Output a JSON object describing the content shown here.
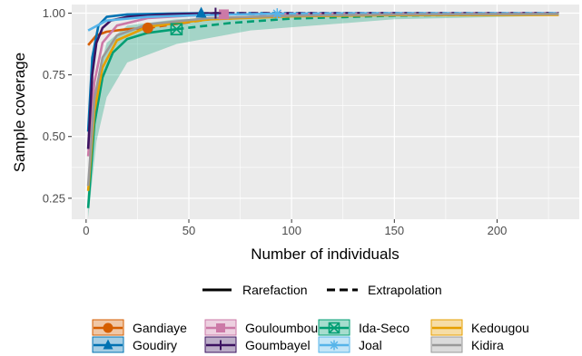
{
  "chart_data": {
    "type": "line",
    "xlabel": "Number of individuals",
    "ylabel": "Sample coverage",
    "xlim": [
      -7,
      240
    ],
    "ylim": [
      0.165,
      1.035
    ],
    "x_ticks": [
      0,
      50,
      100,
      150,
      200
    ],
    "x_tick_labels": [
      "0",
      "50",
      "100",
      "150",
      "200"
    ],
    "y_ticks": [
      0.25,
      0.5,
      0.75,
      1.0
    ],
    "y_tick_labels": [
      "0.25",
      "0.50",
      "0.75",
      "1.00"
    ],
    "grid": true,
    "background": "#ebebeb",
    "legend_linetype": {
      "position": "bottom",
      "items": [
        {
          "label": "Rarefaction",
          "dash": "solid"
        },
        {
          "label": "Extrapolation",
          "dash": "dashed"
        }
      ]
    },
    "legend_placement": "bottom",
    "series": [
      {
        "name": "Gandiaye",
        "color": "#d55e00",
        "marker": "circle",
        "rarefaction": [
          [
            1,
            0.87
          ],
          [
            5,
            0.91
          ],
          [
            10,
            0.925
          ],
          [
            20,
            0.935
          ],
          [
            30,
            0.94
          ]
        ],
        "observed": [
          30,
          0.94
        ],
        "extrapolation": [
          [
            30,
            0.94
          ],
          [
            60,
            0.975
          ],
          [
            100,
            0.99
          ],
          [
            150,
            0.995
          ],
          [
            230,
            0.998
          ]
        ]
      },
      {
        "name": "Goudiry",
        "color": "#0072b2",
        "marker": "triangle",
        "rarefaction": [
          [
            1,
            0.52
          ],
          [
            3,
            0.82
          ],
          [
            6,
            0.95
          ],
          [
            10,
            0.985
          ],
          [
            20,
            0.995
          ],
          [
            40,
            0.998
          ],
          [
            56,
            1.0
          ]
        ],
        "observed": [
          56,
          1.0
        ],
        "extrapolation": [
          [
            56,
            1.0
          ],
          [
            100,
            1.0
          ],
          [
            230,
            1.0
          ]
        ]
      },
      {
        "name": "Gouloumbou",
        "color": "#cc79a7",
        "marker": "square",
        "rarefaction": [
          [
            1,
            0.42
          ],
          [
            4,
            0.72
          ],
          [
            8,
            0.88
          ],
          [
            15,
            0.95
          ],
          [
            30,
            0.98
          ],
          [
            50,
            0.99
          ],
          [
            67,
            0.995
          ]
        ],
        "observed": [
          67,
          0.995
        ],
        "extrapolation": [
          [
            67,
            0.995
          ],
          [
            120,
            0.998
          ],
          [
            230,
            1.0
          ]
        ]
      },
      {
        "name": "Goumbayel",
        "color": "#3c1361",
        "marker": "plus",
        "rarefaction": [
          [
            1,
            0.45
          ],
          [
            3,
            0.75
          ],
          [
            5,
            0.88
          ],
          [
            8,
            0.94
          ],
          [
            12,
            0.97
          ],
          [
            20,
            0.985
          ],
          [
            40,
            0.995
          ],
          [
            63,
            1.0
          ]
        ],
        "observed": [
          63,
          1.0
        ],
        "extrapolation": [
          [
            63,
            1.0
          ],
          [
            100,
            1.0
          ],
          [
            230,
            1.0
          ]
        ]
      },
      {
        "name": "Ida-Seco",
        "color": "#009e73",
        "marker": "square-x",
        "rarefaction": [
          [
            1,
            0.21
          ],
          [
            4,
            0.55
          ],
          [
            8,
            0.74
          ],
          [
            13,
            0.84
          ],
          [
            20,
            0.895
          ],
          [
            30,
            0.92
          ],
          [
            44,
            0.935
          ]
        ],
        "observed": [
          44,
          0.935
        ],
        "extrapolation": [
          [
            44,
            0.935
          ],
          [
            70,
            0.96
          ],
          [
            100,
            0.978
          ],
          [
            150,
            0.99
          ],
          [
            230,
            0.997
          ]
        ],
        "band_upper": [
          [
            1,
            0.25
          ],
          [
            5,
            0.72
          ],
          [
            10,
            0.88
          ],
          [
            20,
            0.95
          ],
          [
            44,
            0.975
          ],
          [
            80,
            0.99
          ],
          [
            150,
            0.998
          ],
          [
            230,
            1.0
          ]
        ],
        "band_lower": [
          [
            1,
            0.17
          ],
          [
            5,
            0.48
          ],
          [
            10,
            0.66
          ],
          [
            20,
            0.8
          ],
          [
            44,
            0.875
          ],
          [
            80,
            0.93
          ],
          [
            150,
            0.975
          ],
          [
            230,
            0.99
          ]
        ]
      },
      {
        "name": "Joal",
        "color": "#56b4e9",
        "marker": "asterisk",
        "rarefaction": [
          [
            1,
            0.93
          ],
          [
            10,
            0.97
          ],
          [
            30,
            0.985
          ],
          [
            60,
            0.993
          ],
          [
            93,
            0.998
          ]
        ],
        "observed": [
          93,
          0.998
        ],
        "extrapolation": [
          [
            93,
            0.998
          ],
          [
            150,
            1.0
          ],
          [
            230,
            1.0
          ]
        ]
      },
      {
        "name": "Kedougou",
        "color": "#e69f00",
        "marker": "none",
        "rarefaction": [
          [
            1,
            0.28
          ],
          [
            4,
            0.6
          ],
          [
            8,
            0.78
          ],
          [
            15,
            0.89
          ],
          [
            30,
            0.945
          ],
          [
            60,
            0.975
          ],
          [
            100,
            0.987
          ],
          [
            150,
            0.992
          ],
          [
            230,
            0.993
          ]
        ],
        "extrapolation": []
      },
      {
        "name": "Kidira",
        "color": "#999999",
        "marker": "none",
        "rarefaction": [
          [
            1,
            0.3
          ],
          [
            4,
            0.65
          ],
          [
            8,
            0.82
          ],
          [
            15,
            0.91
          ],
          [
            30,
            0.955
          ],
          [
            60,
            0.98
          ],
          [
            100,
            0.99
          ],
          [
            150,
            0.995
          ],
          [
            230,
            0.997
          ]
        ],
        "extrapolation": []
      }
    ]
  }
}
